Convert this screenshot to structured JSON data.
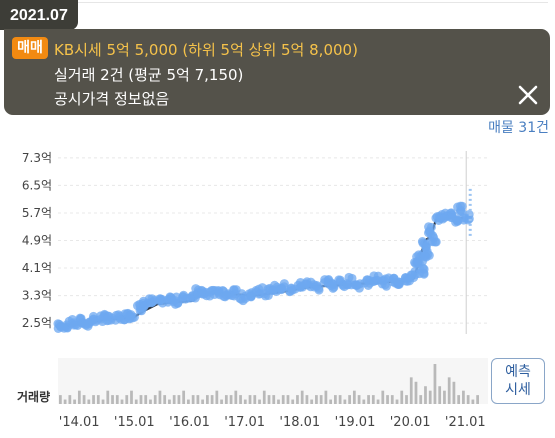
{
  "popup": {
    "date": "2021.07",
    "badge": "매매",
    "kb_price": "KB시세 5억 5,000 (하위 5억 상위 5억 8,000)",
    "actual_trade": "실거래 2건 (평균 5억 7,150)",
    "public_price": "공시가격 정보없음",
    "close_icon": "close-icon"
  },
  "listing_count": "매물 31건",
  "forecast_button": {
    "line1": "예측",
    "line2": "시세"
  },
  "volume_label": "거래량",
  "colors": {
    "popup_bg": "#54524a",
    "badge": "#f28a12",
    "kb_text": "#f5c24a",
    "scatter": "#6ea8f0",
    "trend": "#2b3340",
    "forecast": "#4a7fc1"
  },
  "chart_data": {
    "type": "scatter",
    "y_ticks": [
      "7.3억",
      "6.5억",
      "5.7억",
      "4.9억",
      "4.1억",
      "3.3억",
      "2.5억"
    ],
    "y_tick_values": [
      7.3,
      6.5,
      5.7,
      4.9,
      4.1,
      3.3,
      2.5
    ],
    "x_ticks": [
      "'14.01",
      "'15.01",
      "'16.01",
      "'17.01",
      "'18.01",
      "'19.01",
      "'20.01",
      "'21.01"
    ],
    "x_tick_values": [
      2014,
      2015,
      2016,
      2017,
      2018,
      2019,
      2020,
      2021
    ],
    "ylim": [
      2.3,
      7.5
    ],
    "xlim": [
      2013.95,
      2021.6
    ],
    "kb_trend": [
      [
        2014.0,
        2.4
      ],
      [
        2014.5,
        2.5
      ],
      [
        2014.8,
        2.6
      ],
      [
        2015.3,
        2.65
      ],
      [
        2015.5,
        2.85
      ],
      [
        2015.75,
        3.05
      ],
      [
        2016.0,
        3.1
      ],
      [
        2016.4,
        3.15
      ],
      [
        2016.5,
        3.4
      ],
      [
        2017.0,
        3.35
      ],
      [
        2017.5,
        3.3
      ],
      [
        2018.0,
        3.4
      ],
      [
        2018.5,
        3.55
      ],
      [
        2019.0,
        3.6
      ],
      [
        2019.5,
        3.65
      ],
      [
        2020.0,
        3.7
      ],
      [
        2020.3,
        3.72
      ],
      [
        2020.4,
        3.8
      ],
      [
        2020.5,
        4.3
      ],
      [
        2020.6,
        4.9
      ],
      [
        2020.7,
        5.0
      ],
      [
        2020.8,
        5.5
      ],
      [
        2021.0,
        5.55
      ],
      [
        2021.3,
        5.55
      ]
    ],
    "actual_trades": [
      [
        2014.0,
        2.4
      ],
      [
        2014.1,
        2.45
      ],
      [
        2014.25,
        2.5
      ],
      [
        2014.4,
        2.55
      ],
      [
        2014.5,
        2.5
      ],
      [
        2014.6,
        2.62
      ],
      [
        2014.75,
        2.65
      ],
      [
        2014.9,
        2.6
      ],
      [
        2015.05,
        2.66
      ],
      [
        2015.2,
        2.7
      ],
      [
        2015.3,
        2.75
      ],
      [
        2015.45,
        2.95
      ],
      [
        2015.55,
        3.05
      ],
      [
        2015.65,
        3.12
      ],
      [
        2015.8,
        3.1
      ],
      [
        2015.95,
        3.2
      ],
      [
        2016.1,
        3.15
      ],
      [
        2016.25,
        3.22
      ],
      [
        2016.4,
        3.3
      ],
      [
        2016.5,
        3.45
      ],
      [
        2016.6,
        3.4
      ],
      [
        2016.75,
        3.35
      ],
      [
        2016.9,
        3.4
      ],
      [
        2017.0,
        3.3
      ],
      [
        2017.15,
        3.38
      ],
      [
        2017.3,
        3.25
      ],
      [
        2017.45,
        3.35
      ],
      [
        2017.6,
        3.45
      ],
      [
        2017.75,
        3.4
      ],
      [
        2017.9,
        3.5
      ],
      [
        2018.05,
        3.55
      ],
      [
        2018.2,
        3.45
      ],
      [
        2018.35,
        3.6
      ],
      [
        2018.5,
        3.65
      ],
      [
        2018.65,
        3.55
      ],
      [
        2018.8,
        3.7
      ],
      [
        2018.95,
        3.6
      ],
      [
        2019.1,
        3.65
      ],
      [
        2019.25,
        3.72
      ],
      [
        2019.4,
        3.6
      ],
      [
        2019.55,
        3.7
      ],
      [
        2019.7,
        3.78
      ],
      [
        2019.85,
        3.68
      ],
      [
        2020.0,
        3.75
      ],
      [
        2020.15,
        3.7
      ],
      [
        2020.3,
        3.8
      ],
      [
        2020.38,
        3.9
      ],
      [
        2020.45,
        4.2
      ],
      [
        2020.5,
        4.4
      ],
      [
        2020.55,
        4.0
      ],
      [
        2020.6,
        4.8
      ],
      [
        2020.65,
        4.5
      ],
      [
        2020.7,
        5.2
      ],
      [
        2020.75,
        4.95
      ],
      [
        2020.85,
        5.5
      ],
      [
        2020.95,
        5.6
      ],
      [
        2021.05,
        5.65
      ],
      [
        2021.15,
        5.5
      ],
      [
        2021.25,
        5.8
      ],
      [
        2021.35,
        5.6
      ]
    ],
    "forecast_range": [
      2021.35,
      5.0,
      6.4
    ],
    "volume": [
      2,
      1,
      2,
      1,
      3,
      2,
      1,
      2,
      2,
      1,
      3,
      2,
      2,
      1,
      2,
      3,
      1,
      2,
      2,
      1,
      2,
      3,
      2,
      1,
      2,
      2,
      3,
      1,
      2,
      2,
      1,
      2,
      2,
      3,
      1,
      2,
      2,
      3,
      2,
      1,
      2,
      2,
      1,
      3,
      2,
      2,
      1,
      2,
      2,
      1,
      2,
      3,
      2,
      1,
      2,
      2,
      3,
      1,
      2,
      2,
      1,
      2,
      3,
      2,
      1,
      2,
      2,
      1,
      3,
      2,
      2,
      1,
      3,
      2,
      6,
      5,
      2,
      4,
      3,
      9,
      4,
      3,
      6,
      5,
      2,
      3,
      2,
      1,
      2
    ]
  }
}
